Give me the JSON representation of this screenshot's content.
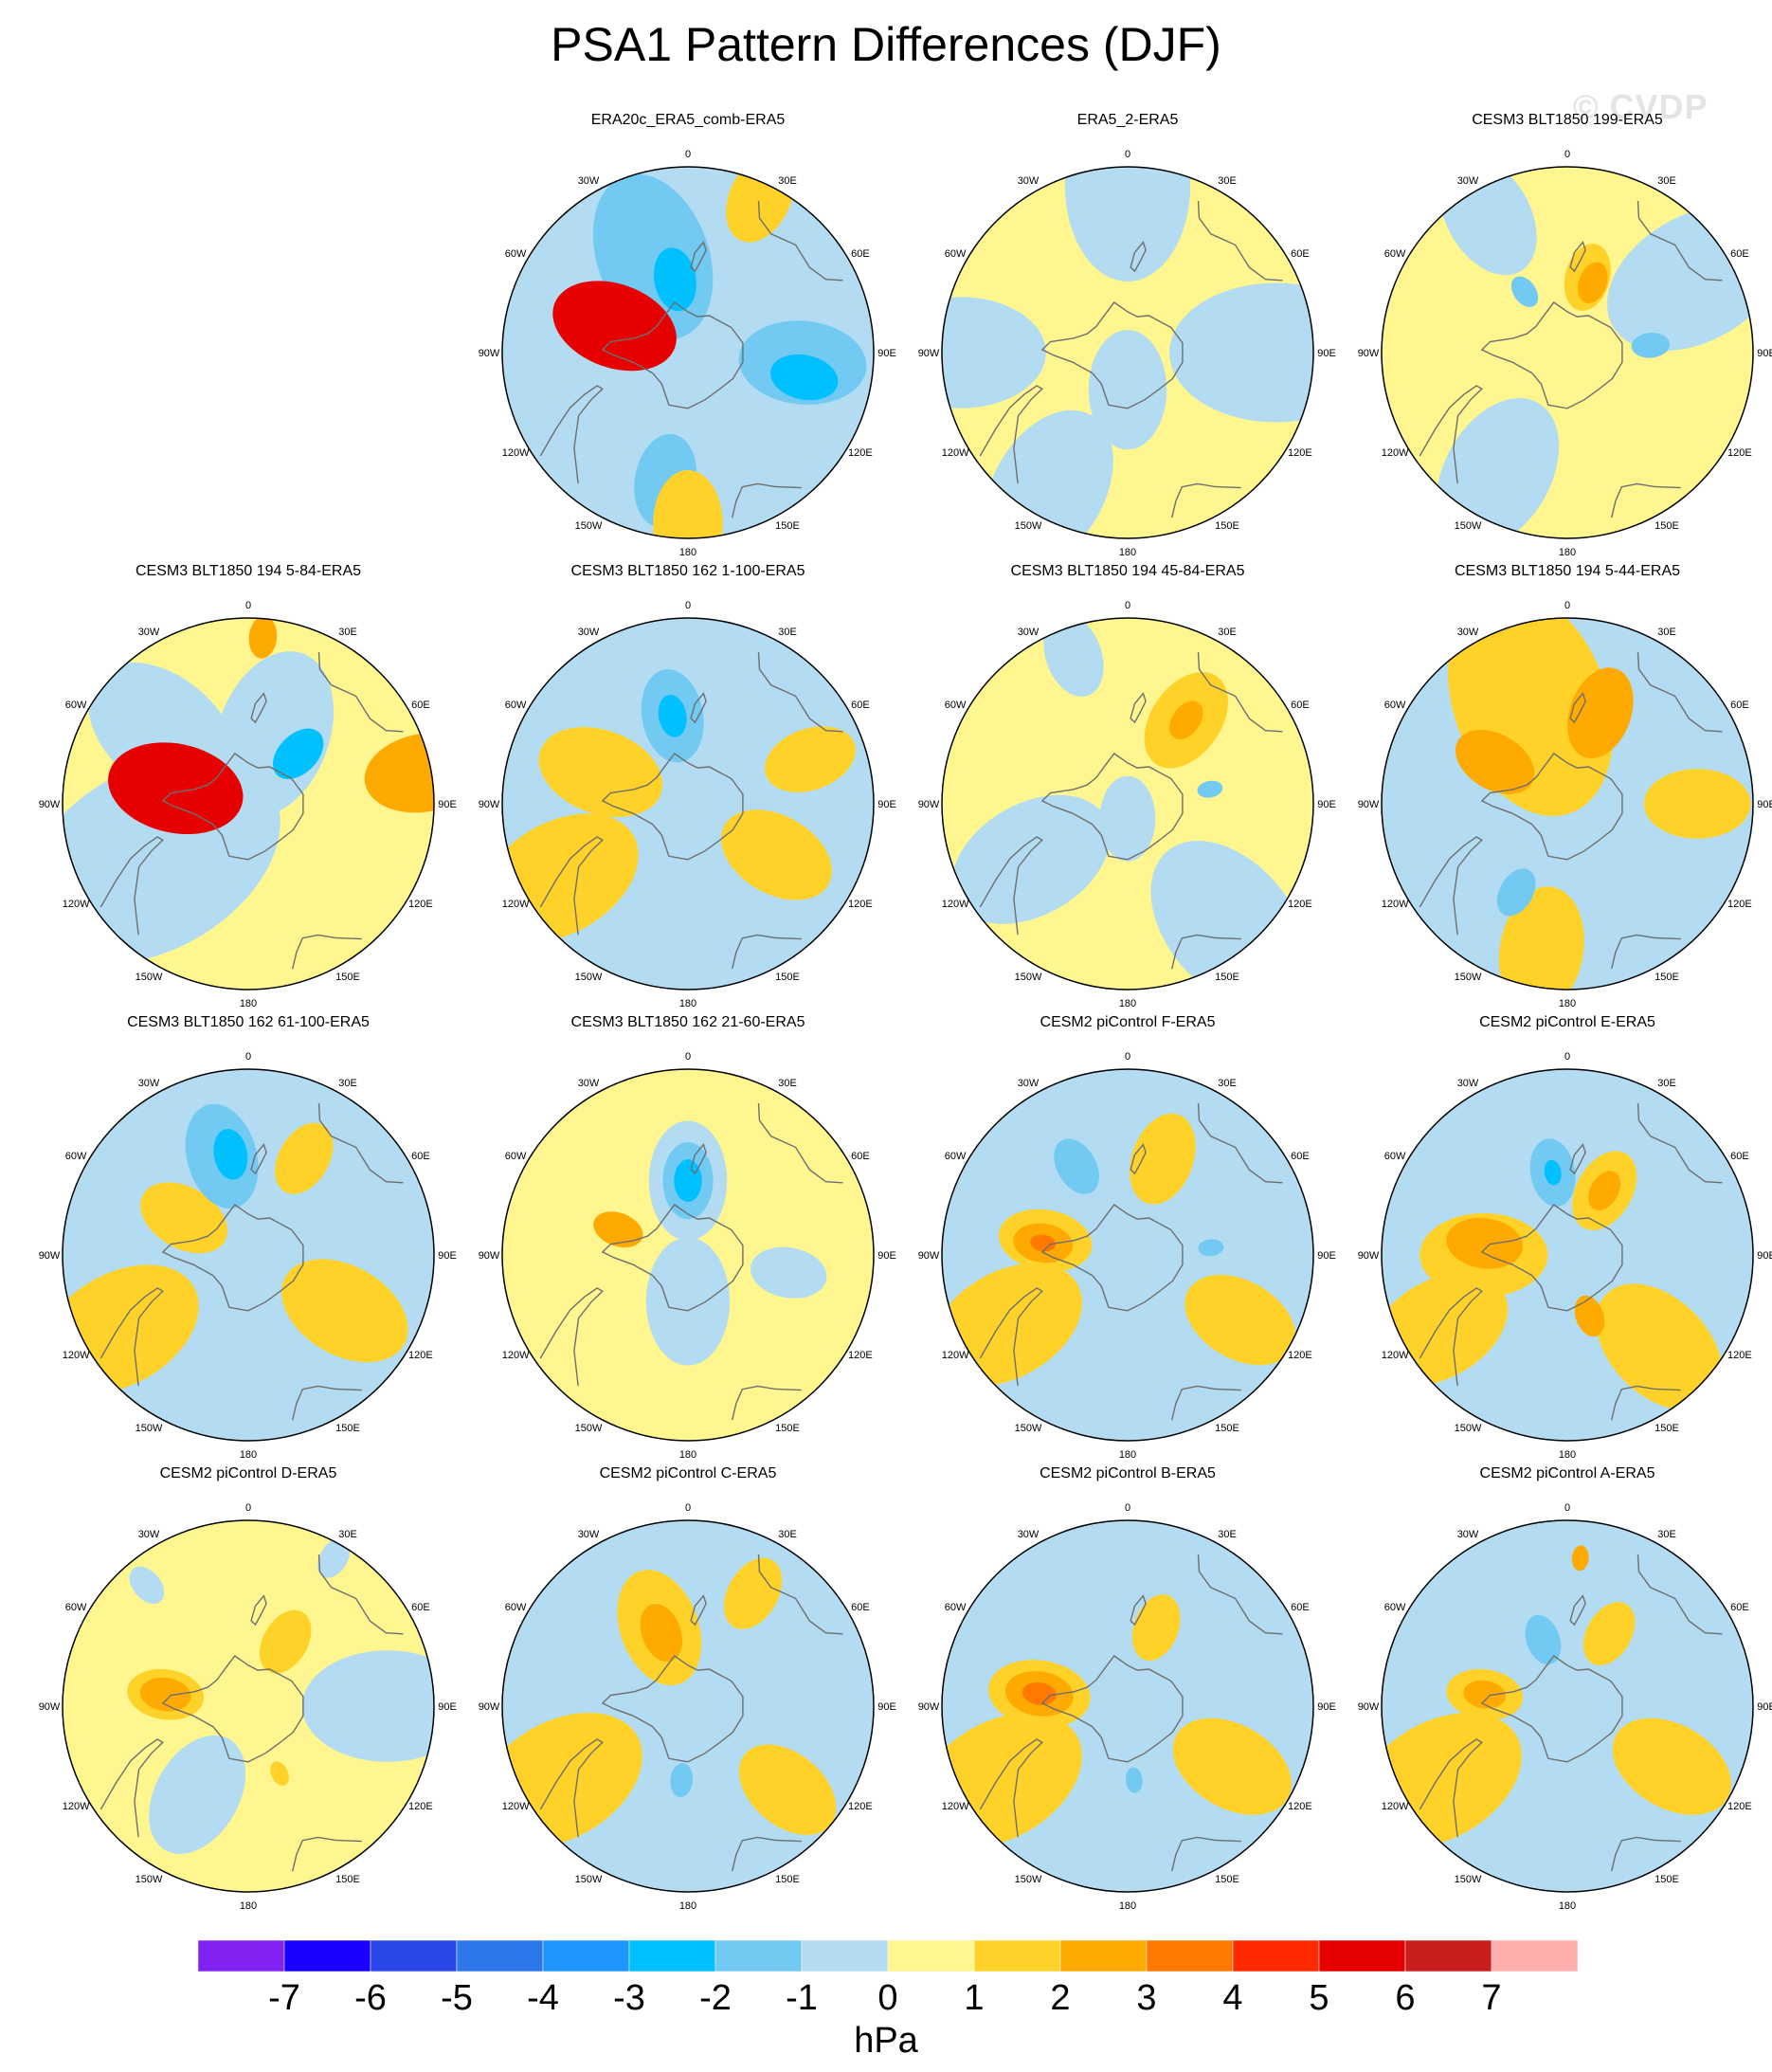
{
  "title": "PSA1 Pattern Differences (DJF)",
  "watermark": "© CVDP",
  "longitude_labels": [
    "0",
    "30E",
    "60E",
    "90E",
    "120E",
    "150E",
    "180",
    "150W",
    "120W",
    "90W",
    "60W",
    "30W"
  ],
  "panels": [
    {
      "title": "ERA20c_ERA5_comb-ERA5",
      "base": "#b3dcf2",
      "features": [
        {
          "kind": "lo",
          "lon": 270,
          "r": 0.55,
          "size": 0.68,
          "level": -1
        },
        {
          "kind": "lo",
          "lon": 200,
          "r": 0.55,
          "size": 0.4,
          "level": -2
        },
        {
          "kind": "lo",
          "lon": 85,
          "r": 0.62,
          "size": 0.3,
          "level": -2
        },
        {
          "kind": "lo",
          "lon": 78,
          "r": 0.64,
          "size": 0.16,
          "level": -3
        },
        {
          "kind": "lo",
          "lon": 350,
          "r": 0.7,
          "size": 0.22,
          "level": -2
        },
        {
          "kind": "lo",
          "lon": 190,
          "r": 0.4,
          "size": 0.15,
          "level": -3
        },
        {
          "kind": "hi",
          "lon": 250,
          "r": 0.42,
          "size": 0.3,
          "level": 5
        },
        {
          "kind": "hi",
          "lon": 155,
          "r": 0.92,
          "size": 0.22,
          "level": 1
        },
        {
          "kind": "hi",
          "lon": 0,
          "r": 0.92,
          "size": 0.25,
          "level": 1
        }
      ]
    },
    {
      "title": "ERA5_2-ERA5",
      "base": "#fff68f",
      "features": [
        {
          "kind": "lo",
          "lon": 330,
          "r": 0.85,
          "size": 0.4,
          "level": -1
        },
        {
          "kind": "lo",
          "lon": 90,
          "r": 0.8,
          "size": 0.5,
          "level": -1
        },
        {
          "kind": "lo",
          "lon": 180,
          "r": 0.9,
          "size": 0.45,
          "level": -1
        },
        {
          "kind": "lo",
          "lon": 270,
          "r": 0.9,
          "size": 0.4,
          "level": -1
        },
        {
          "kind": "lo",
          "lon": 0,
          "r": 0.2,
          "size": 0.28,
          "level": -1
        }
      ]
    },
    {
      "title": "CESM3 BLT1850 199-ERA5",
      "base": "#fff68f",
      "features": [
        {
          "kind": "lo",
          "lon": 330,
          "r": 0.75,
          "size": 0.38,
          "level": -1
        },
        {
          "kind": "lo",
          "lon": 120,
          "r": 0.8,
          "size": 0.45,
          "level": -1
        },
        {
          "kind": "lo",
          "lon": 210,
          "r": 0.85,
          "size": 0.3,
          "level": -1
        },
        {
          "kind": "lo",
          "lon": 215,
          "r": 0.4,
          "size": 0.08,
          "level": -2
        },
        {
          "kind": "lo",
          "lon": 95,
          "r": 0.45,
          "size": 0.09,
          "level": -2
        },
        {
          "kind": "hi",
          "lon": 165,
          "r": 0.42,
          "size": 0.16,
          "level": 1
        },
        {
          "kind": "hi",
          "lon": 160,
          "r": 0.4,
          "size": 0.1,
          "level": 2
        }
      ]
    },
    {
      "title": "CESM3 BLT1850 194 5-84-ERA5",
      "base": "#fff68f",
      "features": [
        {
          "kind": "lo",
          "lon": 300,
          "r": 0.6,
          "size": 0.65,
          "level": -1
        },
        {
          "kind": "lo",
          "lon": 160,
          "r": 0.4,
          "size": 0.4,
          "level": -1
        },
        {
          "kind": "lo",
          "lon": 135,
          "r": 0.38,
          "size": 0.14,
          "level": -3
        },
        {
          "kind": "lo",
          "lon": 230,
          "r": 0.6,
          "size": 0.4,
          "level": -1
        },
        {
          "kind": "hi",
          "lon": 258,
          "r": 0.4,
          "size": 0.32,
          "level": 5
        },
        {
          "kind": "hi",
          "lon": 100,
          "r": 0.96,
          "size": 0.28,
          "level": 2
        },
        {
          "kind": "hi",
          "lon": 175,
          "r": 0.9,
          "size": 0.1,
          "level": 2
        }
      ]
    },
    {
      "title": "CESM3 BLT1850 162 1-100-ERA5",
      "base": "#b3dcf2",
      "features": [
        {
          "kind": "hi",
          "lon": 300,
          "r": 0.8,
          "size": 0.4,
          "level": 1
        },
        {
          "kind": "hi",
          "lon": 60,
          "r": 0.55,
          "size": 0.28,
          "level": 1
        },
        {
          "kind": "hi",
          "lon": 110,
          "r": 0.7,
          "size": 0.22,
          "level": 1
        },
        {
          "kind": "hi",
          "lon": 250,
          "r": 0.5,
          "size": 0.3,
          "level": 1
        },
        {
          "kind": "lo",
          "lon": 190,
          "r": 0.48,
          "size": 0.22,
          "level": -2
        },
        {
          "kind": "lo",
          "lon": 190,
          "r": 0.48,
          "size": 0.1,
          "level": -3
        }
      ]
    },
    {
      "title": "CESM3 BLT1850 194 45-84-ERA5",
      "base": "#fff68f",
      "features": [
        {
          "kind": "lo",
          "lon": 40,
          "r": 0.85,
          "size": 0.45,
          "level": -1
        },
        {
          "kind": "lo",
          "lon": 300,
          "r": 0.6,
          "size": 0.4,
          "level": -1
        },
        {
          "kind": "lo",
          "lon": 200,
          "r": 0.85,
          "size": 0.2,
          "level": -1
        },
        {
          "kind": "lo",
          "lon": 100,
          "r": 0.45,
          "size": 0.06,
          "level": -2
        },
        {
          "kind": "lo",
          "lon": 0,
          "r": 0.08,
          "size": 0.2,
          "level": -1
        },
        {
          "kind": "hi",
          "lon": 145,
          "r": 0.55,
          "size": 0.25,
          "level": 1
        },
        {
          "kind": "hi",
          "lon": 145,
          "r": 0.55,
          "size": 0.1,
          "level": 2
        }
      ]
    },
    {
      "title": "CESM3 BLT1850 194 5-44-ERA5",
      "base": "#b3dcf2",
      "features": [
        {
          "kind": "hi",
          "lon": 200,
          "r": 0.58,
          "size": 0.55,
          "level": 1
        },
        {
          "kind": "hi",
          "lon": 240,
          "r": 0.45,
          "size": 0.2,
          "level": 2
        },
        {
          "kind": "hi",
          "lon": 160,
          "r": 0.52,
          "size": 0.22,
          "level": 2
        },
        {
          "kind": "hi",
          "lon": 350,
          "r": 0.8,
          "size": 0.3,
          "level": 1
        },
        {
          "kind": "hi",
          "lon": 90,
          "r": 0.7,
          "size": 0.25,
          "level": 1
        },
        {
          "kind": "lo",
          "lon": 330,
          "r": 0.55,
          "size": 0.12,
          "level": -2
        }
      ]
    },
    {
      "title": "CESM3 BLT1850 162 61-100-ERA5",
      "base": "#b3dcf2",
      "features": [
        {
          "kind": "hi",
          "lon": 300,
          "r": 0.8,
          "size": 0.4,
          "level": 1
        },
        {
          "kind": "hi",
          "lon": 60,
          "r": 0.6,
          "size": 0.32,
          "level": 1
        },
        {
          "kind": "hi",
          "lon": 240,
          "r": 0.4,
          "size": 0.22,
          "level": 1
        },
        {
          "kind": "hi",
          "lon": 150,
          "r": 0.6,
          "size": 0.18,
          "level": 1
        },
        {
          "kind": "lo",
          "lon": 195,
          "r": 0.55,
          "size": 0.25,
          "level": -2
        },
        {
          "kind": "lo",
          "lon": 190,
          "r": 0.55,
          "size": 0.12,
          "level": -3
        }
      ]
    },
    {
      "title": "CESM3 BLT1850 162 21-60-ERA5",
      "base": "#fff68f",
      "features": [
        {
          "kind": "lo",
          "lon": 0,
          "r": 0.25,
          "size": 0.3,
          "level": -1
        },
        {
          "kind": "lo",
          "lon": 80,
          "r": 0.55,
          "size": 0.18,
          "level": -1
        },
        {
          "kind": "lo",
          "lon": 180,
          "r": 0.4,
          "size": 0.28,
          "level": -1
        },
        {
          "kind": "lo",
          "lon": 180,
          "r": 0.4,
          "size": 0.18,
          "level": -2
        },
        {
          "kind": "lo",
          "lon": 180,
          "r": 0.4,
          "size": 0.1,
          "level": -3
        },
        {
          "kind": "hi",
          "lon": 250,
          "r": 0.4,
          "size": 0.12,
          "level": 2
        }
      ]
    },
    {
      "title": "CESM2 piControl F-ERA5",
      "base": "#b3dcf2",
      "features": [
        {
          "kind": "hi",
          "lon": 300,
          "r": 0.75,
          "size": 0.38,
          "level": 1
        },
        {
          "kind": "hi",
          "lon": 60,
          "r": 0.7,
          "size": 0.28,
          "level": 1
        },
        {
          "kind": "hi",
          "lon": 260,
          "r": 0.45,
          "size": 0.22,
          "level": 1
        },
        {
          "kind": "hi",
          "lon": 262,
          "r": 0.46,
          "size": 0.14,
          "level": 2
        },
        {
          "kind": "hi",
          "lon": 262,
          "r": 0.46,
          "size": 0.06,
          "level": 3
        },
        {
          "kind": "hi",
          "lon": 160,
          "r": 0.55,
          "size": 0.22,
          "level": 1
        },
        {
          "kind": "lo",
          "lon": 210,
          "r": 0.55,
          "size": 0.14,
          "level": -2
        },
        {
          "kind": "lo",
          "lon": 95,
          "r": 0.45,
          "size": 0.06,
          "level": -2
        }
      ]
    },
    {
      "title": "CESM2 piControl E-ERA5",
      "base": "#b3dcf2",
      "features": [
        {
          "kind": "hi",
          "lon": 270,
          "r": 0.45,
          "size": 0.3,
          "level": 1
        },
        {
          "kind": "hi",
          "lon": 262,
          "r": 0.45,
          "size": 0.18,
          "level": 2
        },
        {
          "kind": "hi",
          "lon": 300,
          "r": 0.8,
          "size": 0.35,
          "level": 1
        },
        {
          "kind": "hi",
          "lon": 45,
          "r": 0.7,
          "size": 0.35,
          "level": 1
        },
        {
          "kind": "hi",
          "lon": 20,
          "r": 0.35,
          "size": 0.1,
          "level": 2
        },
        {
          "kind": "hi",
          "lon": 150,
          "r": 0.4,
          "size": 0.2,
          "level": 1
        },
        {
          "kind": "hi",
          "lon": 150,
          "r": 0.4,
          "size": 0.1,
          "level": 2
        },
        {
          "kind": "lo",
          "lon": 190,
          "r": 0.45,
          "size": 0.16,
          "level": -2
        },
        {
          "kind": "lo",
          "lon": 190,
          "r": 0.45,
          "size": 0.06,
          "level": -3
        }
      ]
    },
    {
      "title": "CESM2 piControl D-ERA5",
      "base": "#fff68f",
      "features": [
        {
          "kind": "lo",
          "lon": 330,
          "r": 0.55,
          "size": 0.3,
          "level": -1
        },
        {
          "kind": "lo",
          "lon": 90,
          "r": 0.75,
          "size": 0.4,
          "level": -1
        },
        {
          "kind": "lo",
          "lon": 220,
          "r": 0.85,
          "size": 0.1,
          "level": -1
        },
        {
          "kind": "lo",
          "lon": 150,
          "r": 0.92,
          "size": 0.1,
          "level": -1
        },
        {
          "kind": "hi",
          "lon": 262,
          "r": 0.45,
          "size": 0.18,
          "level": 1
        },
        {
          "kind": "hi",
          "lon": 262,
          "r": 0.45,
          "size": 0.12,
          "level": 2
        },
        {
          "kind": "hi",
          "lon": 150,
          "r": 0.4,
          "size": 0.16,
          "level": 1
        },
        {
          "kind": "hi",
          "lon": 25,
          "r": 0.4,
          "size": 0.06,
          "level": 1
        }
      ]
    },
    {
      "title": "CESM2 piControl C-ERA5",
      "base": "#b3dcf2",
      "features": [
        {
          "kind": "hi",
          "lon": 300,
          "r": 0.8,
          "size": 0.42,
          "level": 1
        },
        {
          "kind": "hi",
          "lon": 200,
          "r": 0.45,
          "size": 0.28,
          "level": 1
        },
        {
          "kind": "hi",
          "lon": 200,
          "r": 0.42,
          "size": 0.14,
          "level": 2
        },
        {
          "kind": "hi",
          "lon": 50,
          "r": 0.7,
          "size": 0.26,
          "level": 1
        },
        {
          "kind": "hi",
          "lon": 150,
          "r": 0.7,
          "size": 0.18,
          "level": 1
        },
        {
          "kind": "lo",
          "lon": 355,
          "r": 0.4,
          "size": 0.08,
          "level": -2
        }
      ]
    },
    {
      "title": "CESM2 piControl B-ERA5",
      "base": "#b3dcf2",
      "features": [
        {
          "kind": "hi",
          "lon": 300,
          "r": 0.8,
          "size": 0.42,
          "level": 1
        },
        {
          "kind": "hi",
          "lon": 60,
          "r": 0.65,
          "size": 0.3,
          "level": 1
        },
        {
          "kind": "hi",
          "lon": 262,
          "r": 0.48,
          "size": 0.24,
          "level": 1
        },
        {
          "kind": "hi",
          "lon": 262,
          "r": 0.48,
          "size": 0.16,
          "level": 2
        },
        {
          "kind": "hi",
          "lon": 262,
          "r": 0.48,
          "size": 0.08,
          "level": 3
        },
        {
          "kind": "hi",
          "lon": 160,
          "r": 0.45,
          "size": 0.16,
          "level": 1
        },
        {
          "kind": "lo",
          "lon": 5,
          "r": 0.4,
          "size": 0.06,
          "level": -2
        }
      ]
    },
    {
      "title": "CESM2 piControl A-ERA5",
      "base": "#b3dcf2",
      "features": [
        {
          "kind": "hi",
          "lon": 300,
          "r": 0.8,
          "size": 0.42,
          "level": 1
        },
        {
          "kind": "hi",
          "lon": 60,
          "r": 0.65,
          "size": 0.3,
          "level": 1
        },
        {
          "kind": "hi",
          "lon": 262,
          "r": 0.45,
          "size": 0.18,
          "level": 1
        },
        {
          "kind": "hi",
          "lon": 262,
          "r": 0.45,
          "size": 0.1,
          "level": 2
        },
        {
          "kind": "hi",
          "lon": 150,
          "r": 0.45,
          "size": 0.16,
          "level": 1
        },
        {
          "kind": "hi",
          "lon": 175,
          "r": 0.8,
          "size": 0.06,
          "level": 2
        },
        {
          "kind": "lo",
          "lon": 200,
          "r": 0.38,
          "size": 0.12,
          "level": -2
        }
      ]
    }
  ],
  "colorbar": {
    "unit": "hPa",
    "colors": [
      "#8122f2",
      "#1a00ff",
      "#2b46e8",
      "#2d77ea",
      "#1e96ff",
      "#00c0ff",
      "#72c9f2",
      "#b3dcf2",
      "#fff68f",
      "#ffd22a",
      "#ffaa00",
      "#ff7800",
      "#ff2a00",
      "#e60000",
      "#c81e1e",
      "#ffaeae"
    ],
    "labels": [
      "-7",
      "-6",
      "-5",
      "-4",
      "-3",
      "-2",
      "-1",
      "0",
      "1",
      "2",
      "3",
      "4",
      "5",
      "6",
      "7"
    ]
  }
}
